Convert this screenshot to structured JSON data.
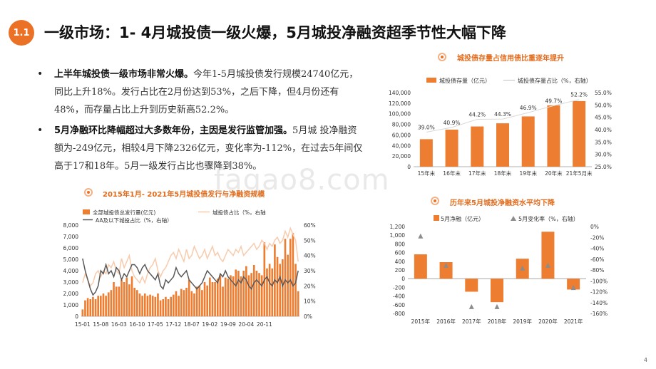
{
  "slide": {
    "badge": "1.1",
    "title": "一级市场：1- 4月城投债一级火爆，5月城投净融资超季节性大幅下降",
    "page_number": "4",
    "watermark": "fagao8.com"
  },
  "bullets": [
    {
      "bold": "上半年城投债一级市场非常火爆。",
      "text": "今年1-5月城投债发行规模24740亿元，同比上升18%。发行占比在2月份达到53%，之后下降，但4月份还有48%，而存量占比上升到历史新高52.2%。"
    },
    {
      "bold": "5月净融环比降幅超过大多数年份，主因是发行监管加强。",
      "text": "5月城  投净融资额为-249亿元，相较4月下降2326亿元，变化率为-112%，在过去5年间仅高于17和18年。5月一级发行占比也骤降到38%。"
    }
  ],
  "colors": {
    "accent": "#ea7125",
    "bar": "#ed7d31",
    "line_light": "#f8cbad",
    "line_dark": "#595959",
    "triangle": "#8c8c8c"
  },
  "chart_data": [
    {
      "type": "bar",
      "title": "城投债存量占信用债比重逐年提升",
      "categories": [
        "15年末",
        "16年末",
        "17年末",
        "18年末",
        "19年末",
        "20年末",
        "21年5月末"
      ],
      "series": [
        {
          "name": "城投债存量（亿元）",
          "axis": "left",
          "kind": "bar",
          "values": [
            52000,
            70000,
            76000,
            82000,
            95000,
            116000,
            124000
          ]
        },
        {
          "name": "城投债存量占比（%，右轴）",
          "axis": "right",
          "kind": "line",
          "values": [
            39.0,
            40.9,
            44.2,
            44.3,
            46.9,
            49.7,
            52.2
          ],
          "labels": [
            "39.0%",
            "40.9%",
            "44.2%",
            "44.3%",
            "46.9%",
            "49.7%",
            "52.2%"
          ]
        }
      ],
      "y_left": {
        "min": 0,
        "max": 140000,
        "ticks": [
          "0",
          "20,000",
          "40,000",
          "60,000",
          "80,000",
          "100,000",
          "120,000",
          "140,000"
        ]
      },
      "y_right": {
        "min": 25,
        "max": 55,
        "ticks": [
          "25.0%",
          "30.0%",
          "35.0%",
          "40.0%",
          "45.0%",
          "50.0%",
          "55.0%"
        ]
      }
    },
    {
      "type": "bar",
      "title": "2015年1月- 2021年5月城投债发行与净融资规模",
      "x_ticks": [
        "15-01",
        "15-08",
        "16-03",
        "16-10",
        "17-05",
        "17-12",
        "18-07",
        "19-02",
        "19-09",
        "20-04",
        "20-11"
      ],
      "series": [
        {
          "name": "全部城投债总发行量(亿元)",
          "axis": "left",
          "kind": "bar",
          "values": [
            600,
            1400,
            1600,
            1500,
            1700,
            1500,
            1800,
            1800,
            2000,
            1800,
            2100,
            2300,
            3000,
            2600,
            2600,
            3200,
            3000,
            3400,
            2800,
            3500,
            2500,
            2300,
            2000,
            1800,
            2000,
            1800,
            1900,
            1800,
            1700,
            2000,
            1400,
            1500,
            1700,
            1500,
            1700,
            1900,
            2200,
            1800,
            2400,
            2300,
            2500,
            3200,
            2200,
            2000,
            2600,
            2700,
            2300,
            3000,
            2700,
            3400,
            3000,
            3000,
            3300,
            3600,
            2600,
            3400,
            3300,
            3600,
            3500,
            4100,
            4000,
            3500,
            4000,
            4400,
            3600,
            3800,
            4500,
            4000,
            3800,
            3600,
            6500,
            4200,
            4600,
            4200,
            6300,
            5200,
            4600,
            5000,
            6800,
            5400,
            6800,
            7300,
            4600,
            2200
          ]
        },
        {
          "name": "城投债占比（%，右轴",
          "axis": "right",
          "kind": "line",
          "tone": "light",
          "values": [
            22,
            28,
            24,
            20,
            22,
            28,
            30,
            26,
            30,
            28,
            34,
            32,
            36,
            30,
            28,
            38,
            32,
            36,
            40,
            30,
            26,
            24,
            22,
            26,
            22,
            28,
            32,
            34,
            38,
            30,
            26,
            30,
            32,
            36,
            40,
            42,
            38,
            44,
            40,
            36,
            44,
            38,
            40,
            46,
            42,
            38,
            40,
            44,
            38,
            42,
            46,
            40,
            42,
            38,
            36,
            40,
            44,
            42,
            40,
            44,
            42,
            46,
            40,
            42,
            44,
            46,
            48,
            44,
            46,
            50,
            48,
            44,
            48,
            46,
            50,
            52,
            48,
            50,
            56,
            52,
            58,
            54,
            50,
            36
          ]
        },
        {
          "name": "AA及以下城投占比（%，右轴）",
          "axis": "right",
          "kind": "line",
          "tone": "dark",
          "values": [
            38,
            30,
            24,
            18,
            14,
            16,
            20,
            30,
            28,
            34,
            28,
            30,
            26,
            32,
            30,
            24,
            28,
            26,
            30,
            34,
            34,
            32,
            28,
            32,
            34,
            30,
            28,
            26,
            24,
            28,
            20,
            18,
            24,
            22,
            24,
            26,
            32,
            28,
            26,
            28,
            30,
            24,
            22,
            20,
            18,
            20,
            22,
            26,
            30,
            28,
            26,
            24,
            22,
            28,
            26,
            30,
            26,
            24,
            22,
            20,
            24,
            22,
            26,
            24,
            20,
            18,
            22,
            24,
            22,
            20,
            24,
            26,
            22,
            20,
            24,
            22,
            26,
            20,
            24,
            22,
            24,
            20,
            22,
            30
          ]
        }
      ],
      "y_left": {
        "min": 0,
        "max": 8000,
        "ticks": [
          "0",
          "1,000",
          "2,000",
          "3,000",
          "4,000",
          "5,000",
          "6,000",
          "7,000",
          "8,000"
        ]
      },
      "y_right": {
        "min": 0,
        "max": 60,
        "ticks": [
          "0%",
          "10%",
          "20%",
          "30%",
          "40%",
          "50%",
          "60%"
        ]
      }
    },
    {
      "type": "bar",
      "title": "历年来5月城投净融资水平均下降",
      "categories": [
        "2015年",
        "2016年",
        "2017年",
        "2018年",
        "2019年",
        "2020年",
        "2021年"
      ],
      "series": [
        {
          "name": "5月净融（亿元）",
          "axis": "left",
          "kind": "bar",
          "values": [
            560,
            380,
            -300,
            -540,
            460,
            1080,
            -250
          ]
        },
        {
          "name": "5月变化率（%，右轴）",
          "axis": "right",
          "kind": "triangle",
          "values": [
            -18,
            -72,
            -148,
            -148,
            -77,
            -72,
            -113
          ]
        }
      ],
      "y_left": {
        "min": -800,
        "max": 1200,
        "ticks": [
          "-800",
          "-600",
          "-400",
          "-200",
          "0",
          "200",
          "400",
          "600",
          "800",
          "1,000",
          "1,200"
        ]
      },
      "y_right": {
        "min": -160,
        "max": 0,
        "ticks": [
          "-160%",
          "-140%",
          "-120%",
          "-100%",
          "-80%",
          "-60%",
          "-40%",
          "-20%",
          "0%"
        ]
      }
    }
  ]
}
